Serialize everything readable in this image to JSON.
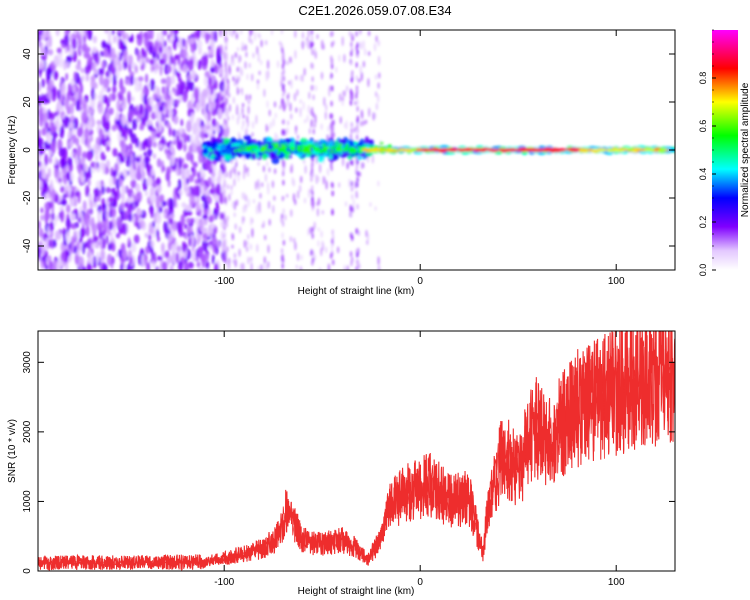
{
  "figure_title": "C2E1.2026.059.07.08.E34",
  "colors": {
    "snr_line": "#ee2d2d",
    "axis": "#000000",
    "background": "#ffffff"
  },
  "chart_data": [
    {
      "type": "heatmap",
      "title": "C2E1.2026.059.07.08.E34",
      "xlabel": "Height of straight line (km)",
      "ylabel": "Frequency (Hz)",
      "xlim": [
        -195,
        130
      ],
      "ylim": [
        -50,
        50
      ],
      "x_ticks": [
        -100,
        0,
        100
      ],
      "x_tick_labels": [
        "-100",
        "0",
        "100"
      ],
      "y_ticks": [
        -40,
        -20,
        0,
        20,
        40
      ],
      "y_tick_labels": [
        "-40",
        "-20",
        "0",
        "20",
        "40"
      ],
      "colorbar": {
        "label": "Normalized spectral amplitude",
        "range": [
          0,
          1
        ],
        "ticks": [
          0,
          0.2,
          0.4,
          0.6,
          0.8
        ],
        "tick_labels": [
          "0.0",
          "0.2",
          "0.4",
          "0.6",
          "0.8"
        ],
        "colormap": "rainbow (white-violet-blue-cyan-green-yellow-red-magenta)"
      },
      "regions": [
        {
          "x_range": [
            -195,
            -100
          ],
          "freq_range": [
            -50,
            50
          ],
          "amplitude": 0.1,
          "description": "broadband noise"
        },
        {
          "x_range": [
            -100,
            -30
          ],
          "freq_range": [
            -10,
            8
          ],
          "amplitude": 0.35,
          "description": "emerging signal band"
        },
        {
          "x_range": [
            -30,
            130
          ],
          "freq_range": [
            -2,
            2
          ],
          "amplitude": 0.95,
          "description": "narrow carrier near 0 Hz"
        }
      ]
    },
    {
      "type": "line",
      "xlabel": "Height of straight line (km)",
      "ylabel": "SNR (10 * v/v)",
      "xlim": [
        -195,
        130
      ],
      "ylim": [
        0,
        3450
      ],
      "x_ticks": [
        -100,
        0,
        100
      ],
      "x_tick_labels": [
        "-100",
        "0",
        "100"
      ],
      "y_ticks": [
        0,
        1000,
        2000,
        3000
      ],
      "y_tick_labels": [
        "0",
        "1000",
        "2000",
        "3000"
      ],
      "series": [
        {
          "name": "SNR",
          "x": [
            -195,
            -150,
            -110,
            -100,
            -90,
            -80,
            -72,
            -68,
            -60,
            -50,
            -40,
            -32,
            -27,
            -22,
            -15,
            -5,
            5,
            15,
            25,
            32,
            35,
            42,
            50,
            58,
            65,
            75,
            85,
            95,
            105,
            115,
            125,
            130
          ],
          "y": [
            120,
            120,
            130,
            180,
            250,
            320,
            520,
            900,
            450,
            380,
            450,
            320,
            150,
            380,
            950,
            1150,
            1250,
            1000,
            1050,
            250,
            1000,
            1700,
            1400,
            2100,
            1800,
            2200,
            2450,
            2500,
            2650,
            2750,
            2800,
            2850
          ]
        }
      ]
    }
  ]
}
